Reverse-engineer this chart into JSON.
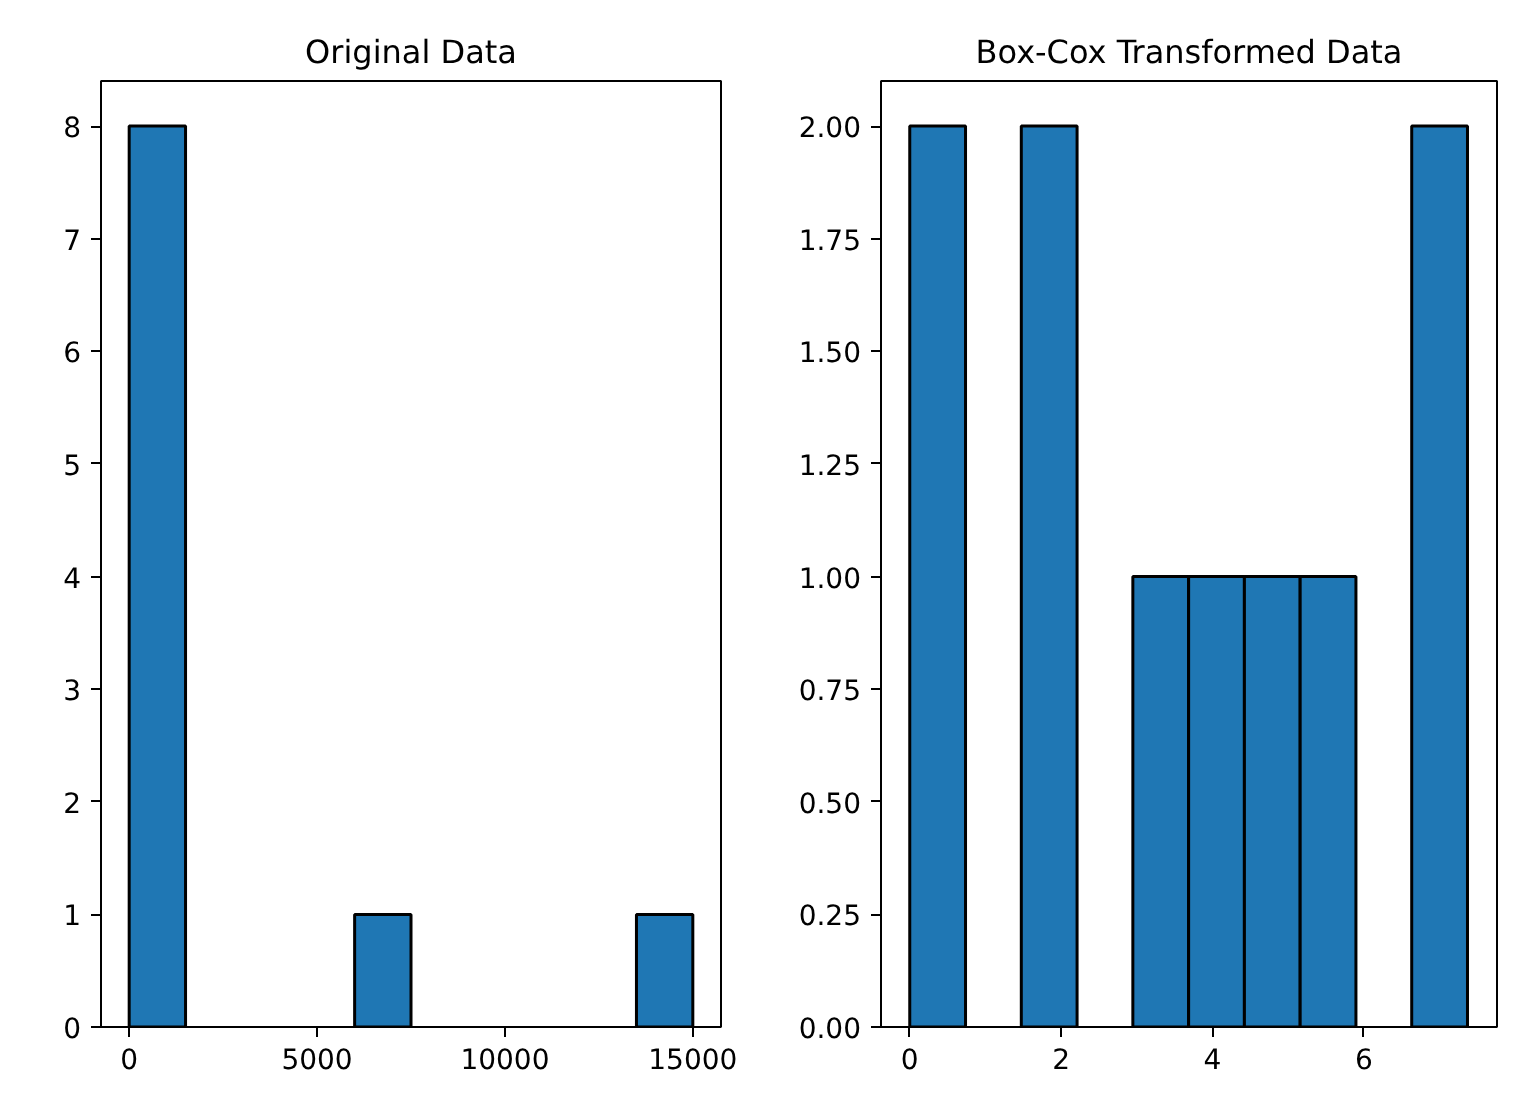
{
  "chart_data": [
    {
      "type": "histogram",
      "title": "Original Data",
      "bins": [
        0,
        1500,
        3000,
        4500,
        6000,
        7500,
        9000,
        10500,
        12000,
        13500,
        15000
      ],
      "values": [
        8,
        0,
        0,
        0,
        1,
        0,
        0,
        0,
        0,
        1
      ],
      "color": "#1f77b4",
      "xlim": [
        -750,
        15750
      ],
      "xticks": [
        0,
        5000,
        10000,
        15000
      ],
      "ylim": [
        0,
        8.4
      ],
      "yticks": [
        0,
        1,
        2,
        3,
        4,
        5,
        6,
        7,
        8
      ],
      "grid": false
    },
    {
      "type": "histogram",
      "title": "Box-Cox Transformed Data",
      "bins": [
        0,
        0.737,
        1.474,
        2.211,
        2.948,
        3.685,
        4.422,
        5.159,
        5.896,
        6.633,
        7.37
      ],
      "values": [
        2,
        0,
        2,
        0,
        1,
        1,
        1,
        1,
        0,
        2
      ],
      "color": "#1f77b4",
      "xlim": [
        -0.38,
        7.76
      ],
      "xticks": [
        0,
        2,
        4,
        6
      ],
      "ylim": [
        0,
        2.1
      ],
      "yticks": [
        {
          "value": 0,
          "label": "0.00"
        },
        {
          "value": 0.25,
          "label": "0.25"
        },
        {
          "value": 0.5,
          "label": "0.50"
        },
        {
          "value": 0.75,
          "label": "0.75"
        },
        {
          "value": 1,
          "label": "1.00"
        },
        {
          "value": 1.25,
          "label": "1.25"
        },
        {
          "value": 1.5,
          "label": "1.50"
        },
        {
          "value": 1.75,
          "label": "1.75"
        },
        {
          "value": 2,
          "label": "2.00"
        }
      ],
      "grid": false
    }
  ]
}
